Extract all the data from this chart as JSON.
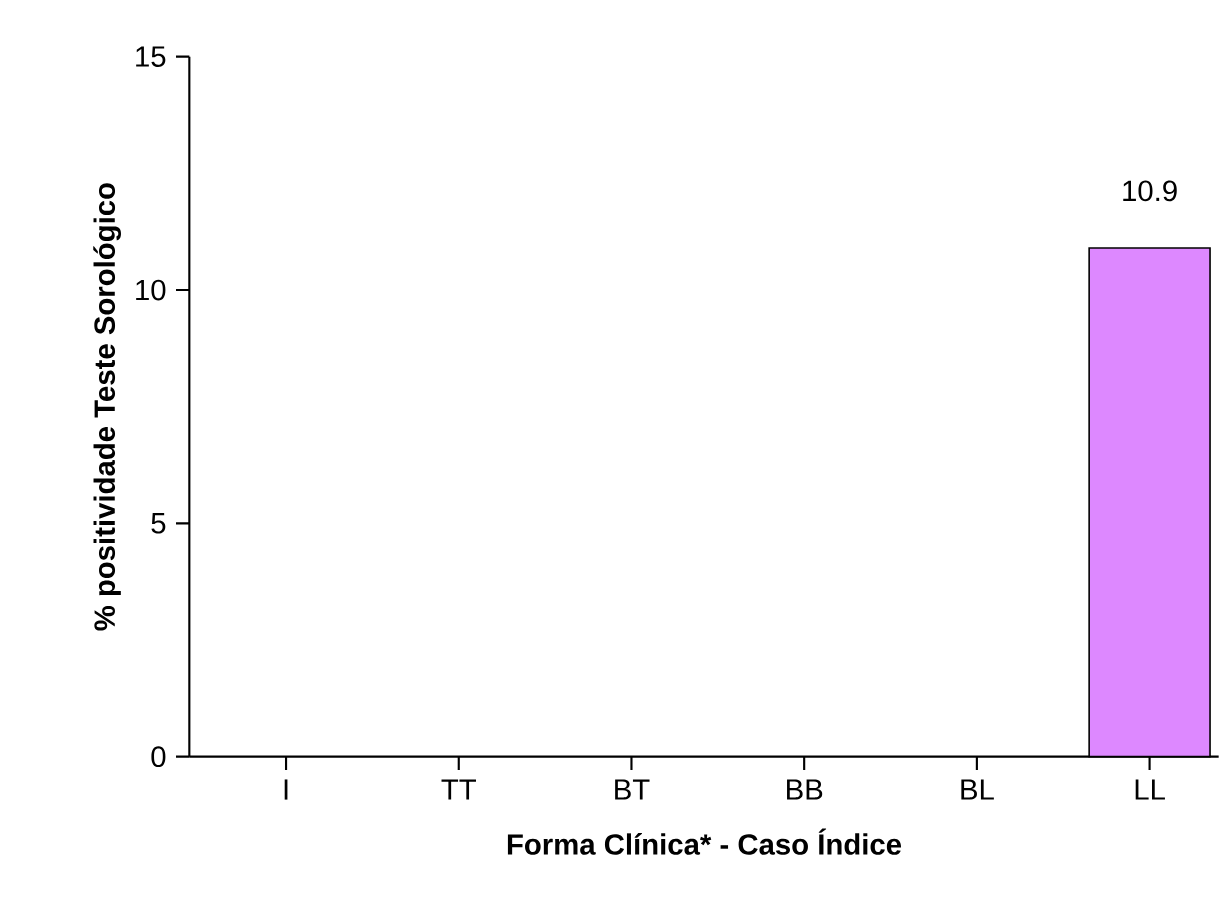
{
  "chart_data": {
    "type": "bar",
    "xlabel": "Forma Clínica* - Caso Índice",
    "ylabel": "% positividade Teste Sorológico",
    "categories": [
      "I",
      "TT",
      "BT",
      "BB",
      "BL",
      "LL"
    ],
    "values": [
      0,
      0,
      0,
      0,
      0,
      10.9
    ],
    "value_labels": [
      null,
      null,
      null,
      null,
      null,
      "10.9"
    ],
    "color": "#dd88ff",
    "ylim": [
      0,
      15
    ],
    "yticks": [
      0,
      5,
      10,
      15
    ],
    "grid": false
  }
}
